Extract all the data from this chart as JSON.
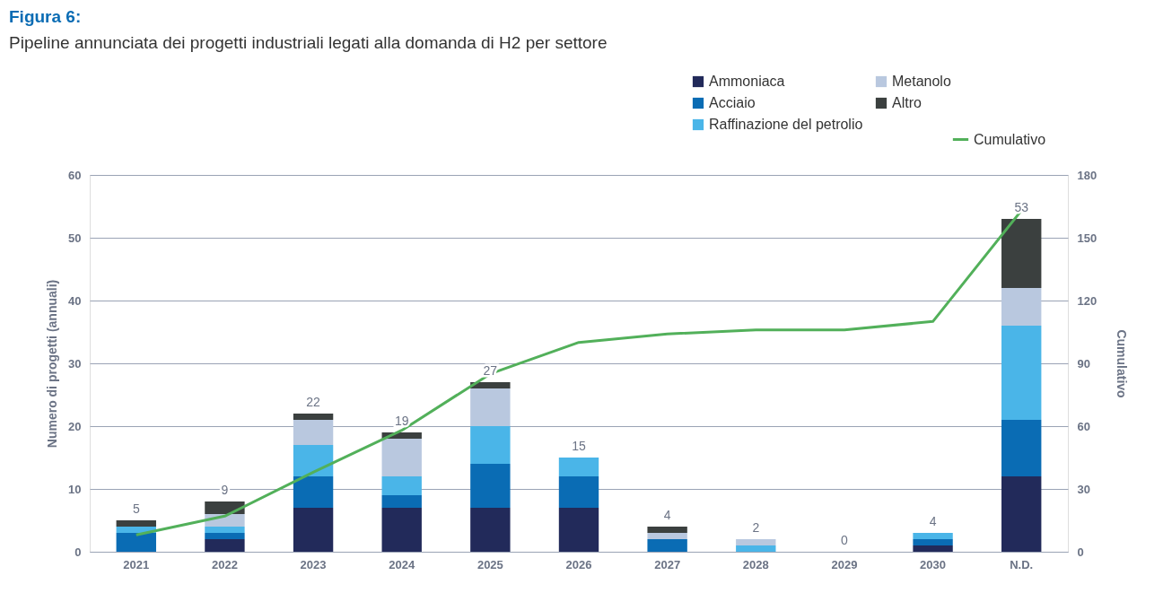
{
  "chart_data": {
    "type": "bar",
    "stacked": true,
    "title": "Figura 6:",
    "subtitle": "Pipeline annunciata dei progetti industriali legati alla domanda di H2 per settore",
    "ylabel": "Numero di progetti (annuali)",
    "y2label": "Cumulativo",
    "categories": [
      "2021",
      "2022",
      "2023",
      "2024",
      "2025",
      "2026",
      "2027",
      "2028",
      "2029",
      "2030",
      "N.D."
    ],
    "series": [
      {
        "name": "Ammoniaca",
        "color": "#222a5a",
        "values": [
          0,
          2,
          7,
          7,
          7,
          7,
          0,
          0,
          0,
          1,
          12
        ]
      },
      {
        "name": "Acciaio",
        "color": "#0a6cb4",
        "values": [
          3,
          1,
          5,
          2,
          7,
          5,
          2,
          0,
          0,
          1,
          9
        ]
      },
      {
        "name": "Raffinazione del petrolio",
        "color": "#4ab5e8",
        "values": [
          1,
          1,
          5,
          3,
          6,
          3,
          0,
          1,
          0,
          1,
          15
        ]
      },
      {
        "name": "Metanolo",
        "color": "#b9c8df",
        "values": [
          0,
          2,
          4,
          6,
          6,
          0,
          1,
          1,
          0,
          0,
          6
        ]
      },
      {
        "name": "Altro",
        "color": "#3b403f",
        "values": [
          1,
          2,
          1,
          1,
          1,
          0,
          1,
          0,
          0,
          0,
          11
        ]
      },
      {
        "name": "Cumulativo",
        "color": "#52b05a",
        "type": "line",
        "axis": "y2",
        "values": [
          8,
          17,
          38,
          58,
          85,
          100,
          104,
          106,
          106,
          110,
          163
        ]
      }
    ],
    "totals": [
      "5",
      "9",
      "22",
      "19",
      "27",
      "15",
      "4",
      "2",
      "0",
      "4",
      "53"
    ],
    "ylim": [
      0,
      60
    ],
    "yticks": [
      0,
      10,
      20,
      30,
      40,
      50,
      60
    ],
    "y2lim": [
      0,
      180
    ],
    "y2ticks": [
      0,
      30,
      60,
      90,
      120,
      150,
      180
    ],
    "grid": "y",
    "legend": "top right",
    "marker": "none",
    "line_style": "solid"
  }
}
